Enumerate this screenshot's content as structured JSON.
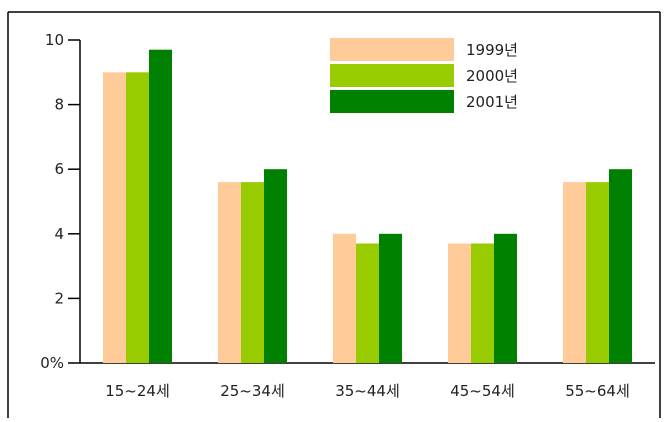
{
  "chart_data": {
    "type": "bar",
    "categories": [
      "15~24세",
      "25~34세",
      "35~44세",
      "45~54세",
      "55~64세"
    ],
    "series": [
      {
        "name": "1999년",
        "color": "#FFCC99",
        "values": [
          9.0,
          5.6,
          4.0,
          3.7,
          5.6
        ]
      },
      {
        "name": "2000년",
        "color": "#99CC00",
        "values": [
          9.0,
          5.6,
          3.7,
          3.7,
          5.6
        ]
      },
      {
        "name": "2001년",
        "color": "#008000",
        "values": [
          9.7,
          6.0,
          4.0,
          4.0,
          6.0
        ]
      }
    ],
    "ylim": [
      0,
      10
    ],
    "yticks": [
      0,
      2,
      4,
      6,
      8,
      10
    ],
    "ytick_labels": [
      "0%",
      "2",
      "4",
      "6",
      "8",
      "10"
    ],
    "grid": false,
    "legend_position": "top-right"
  }
}
